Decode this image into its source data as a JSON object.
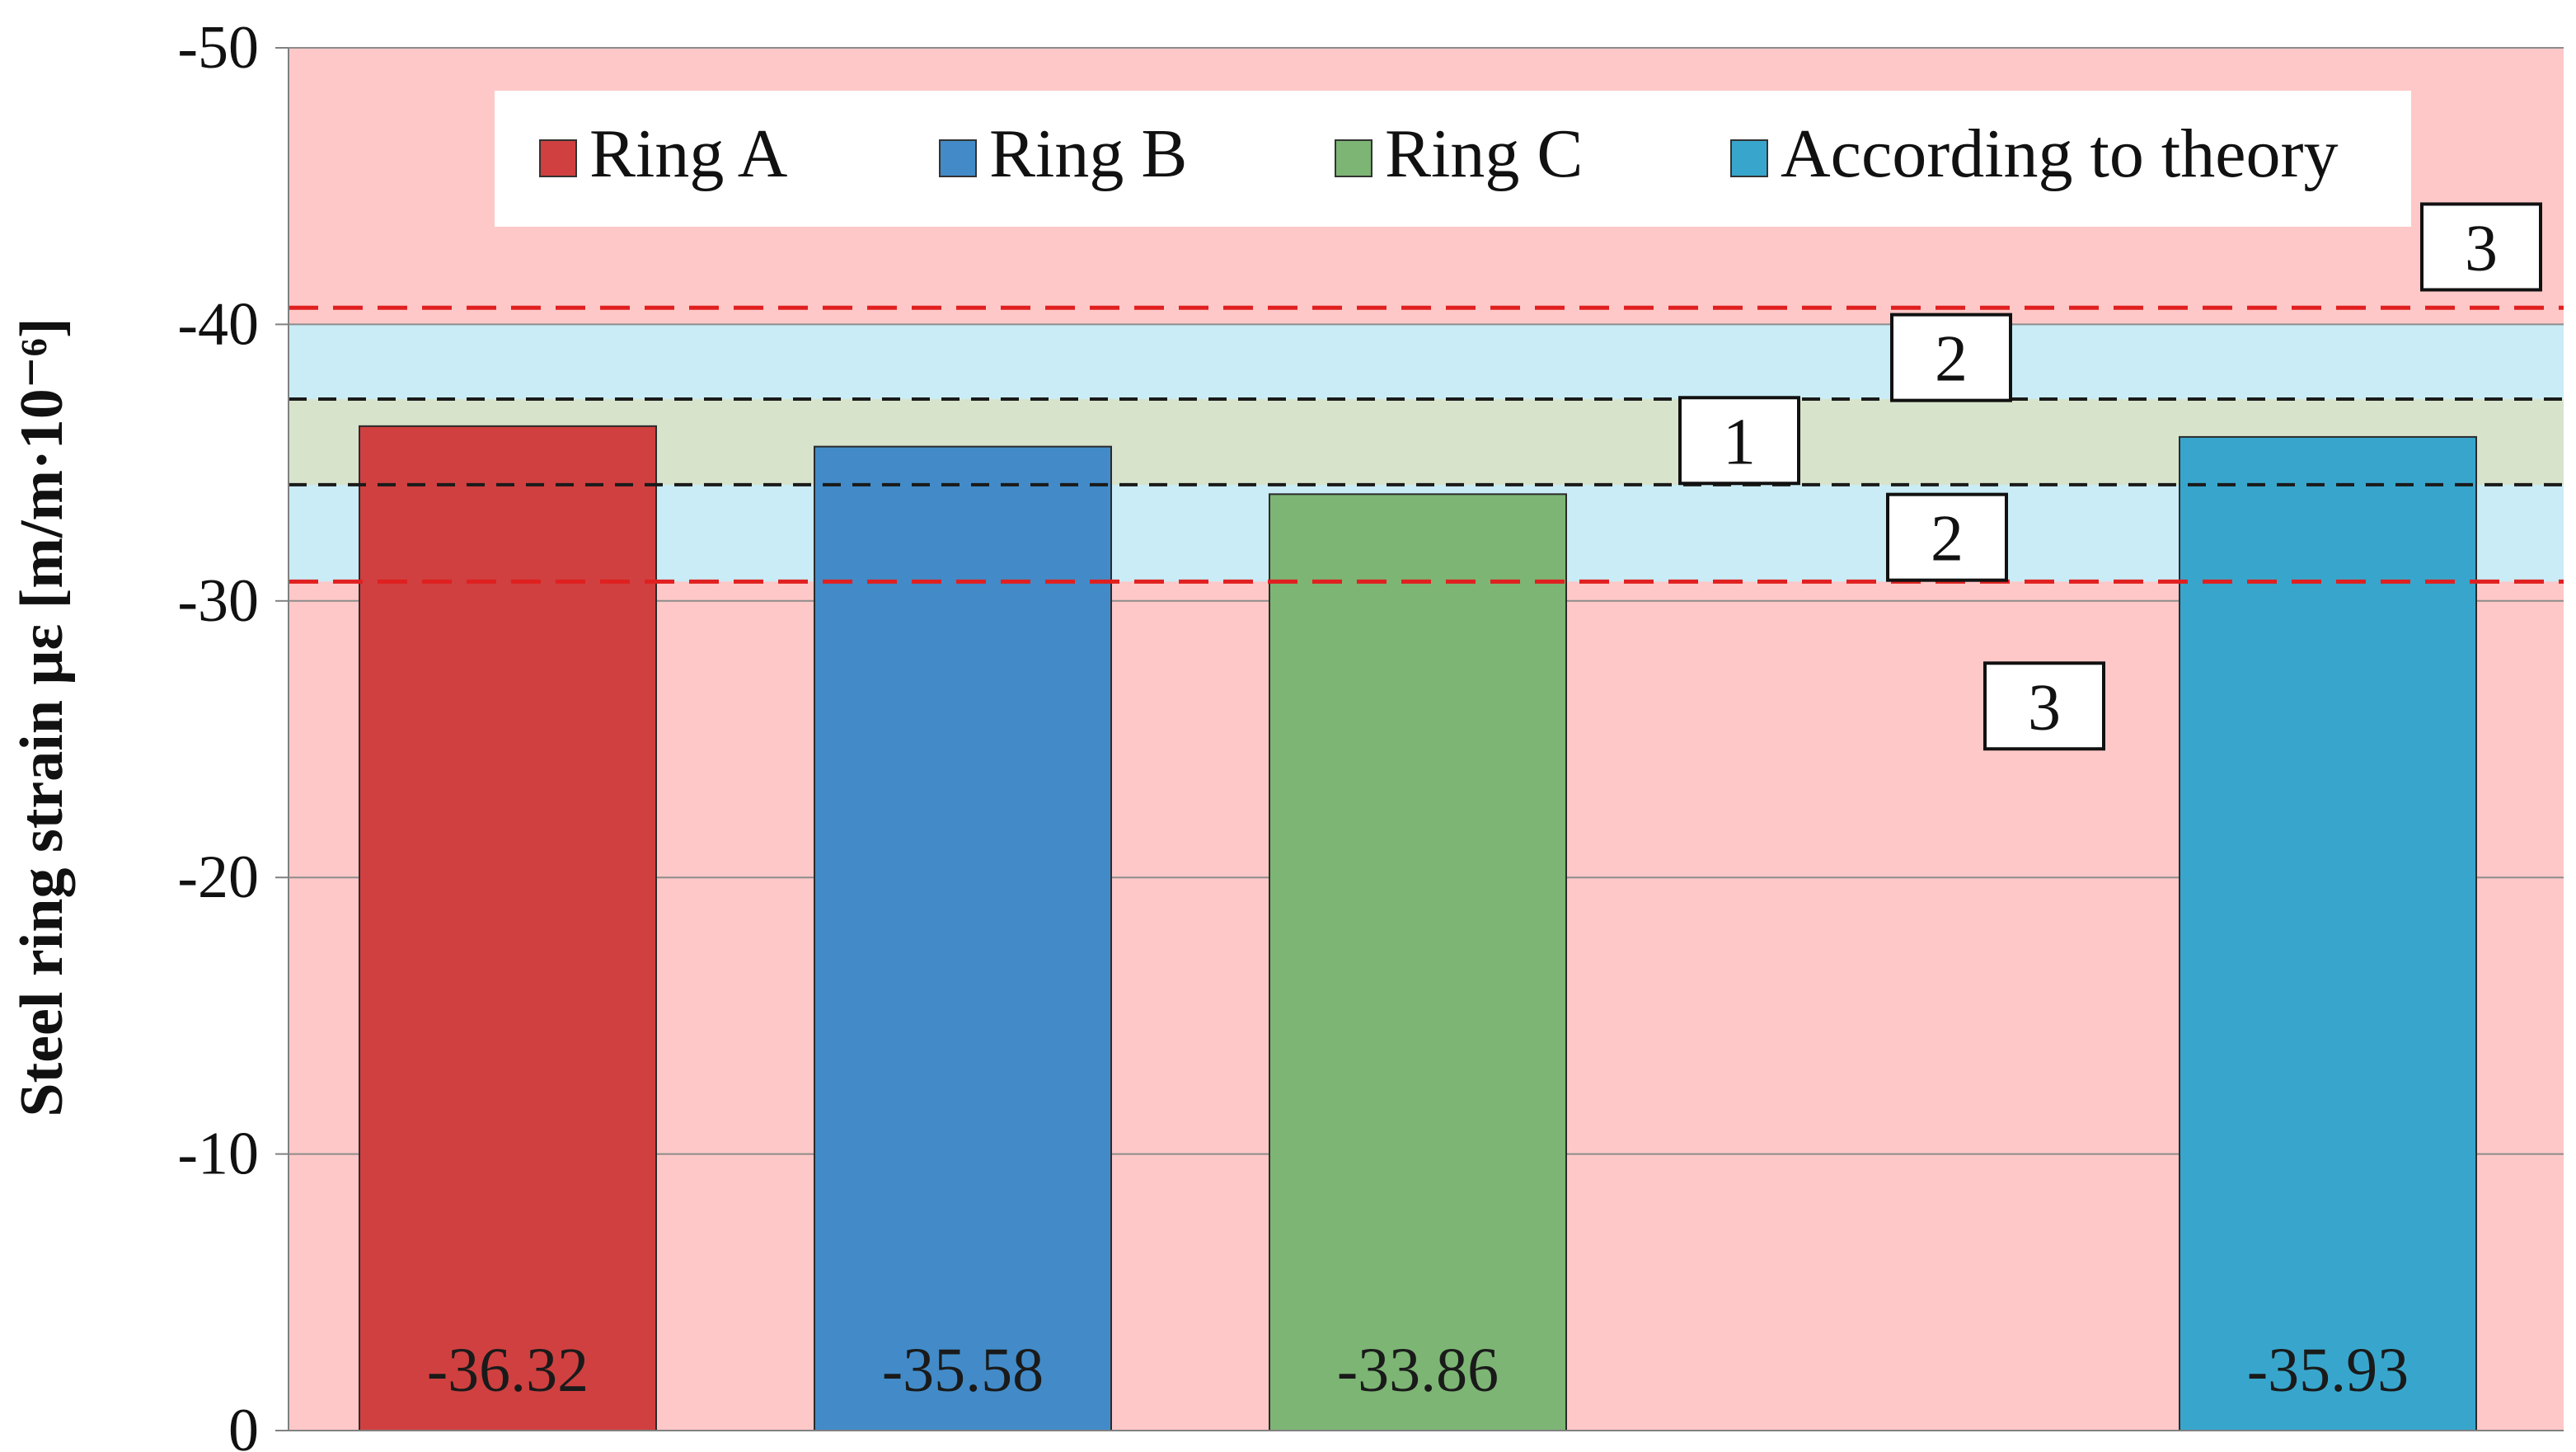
{
  "chart_data": {
    "type": "bar",
    "ylabel": "Steel ring strain   με [m/m·10⁻⁶]",
    "ylim": [
      0,
      -50
    ],
    "yticks": [
      {
        "value": 0,
        "label": "0"
      },
      {
        "value": -10,
        "label": "-10"
      },
      {
        "value": -20,
        "label": "-20"
      },
      {
        "value": -30,
        "label": "-30"
      },
      {
        "value": -40,
        "label": "-40"
      },
      {
        "value": -50,
        "label": "-50"
      }
    ],
    "grid": true,
    "legend_position": "top",
    "series": [
      {
        "name": "Ring A",
        "value": -36.32,
        "label": "-36.32",
        "color": "#d04040"
      },
      {
        "name": "Ring B",
        "value": -35.58,
        "label": "-35.58",
        "color": "#428bc8"
      },
      {
        "name": "Ring C",
        "value": -33.86,
        "label": "-33.86",
        "color": "#7db574"
      },
      {
        "name": "According to theory",
        "value": -35.93,
        "label": "-35.93",
        "color": "#38a6cc"
      }
    ],
    "zones": {
      "outer_color": "#ffc8c8",
      "band_color": "#c9ecf6",
      "inner_color": "#d8e3cc",
      "red_limits": [
        -30.7,
        -40.6
      ],
      "black_limits": [
        -34.2,
        -37.3
      ],
      "labels": [
        {
          "id": "3-upper",
          "text": "3",
          "y": -42.8
        },
        {
          "id": "2-upper",
          "text": "2",
          "y": -38.8
        },
        {
          "id": "1",
          "text": "1",
          "y": -35.8
        },
        {
          "id": "2-lower",
          "text": "2",
          "y": -32.3
        },
        {
          "id": "3-lower",
          "text": "3",
          "y": -26.2
        }
      ]
    }
  }
}
